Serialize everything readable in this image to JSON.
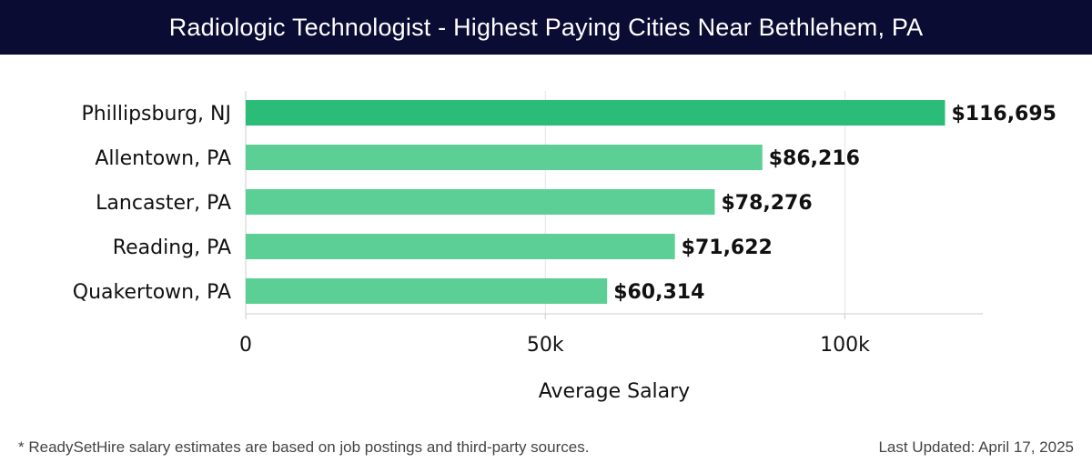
{
  "header": {
    "title": "Radiologic Technologist - Highest Paying Cities Near Bethlehem, PA"
  },
  "chart_data": {
    "type": "bar",
    "orientation": "horizontal",
    "title": "Radiologic Technologist - Highest Paying Cities Near Bethlehem, PA",
    "xlabel": "Average Salary",
    "ylabel": "",
    "categories": [
      "Phillipsburg, NJ",
      "Allentown, PA",
      "Lancaster, PA",
      "Reading, PA",
      "Quakertown, PA"
    ],
    "values": [
      116695,
      86216,
      78276,
      71622,
      60314
    ],
    "value_labels": [
      "$116,695",
      "$86,216",
      "$78,276",
      "$71,622",
      "$60,314"
    ],
    "xticks": [
      0,
      50000,
      100000
    ],
    "xtick_labels": [
      "0",
      "50k",
      "100k"
    ],
    "xlim": [
      0,
      123000
    ],
    "grid": "vertical",
    "colors": {
      "highlight": "#2bbd78",
      "bar": "#5ccf96",
      "grid": "#e3e3e3",
      "axis": "#cccccc"
    }
  },
  "footer": {
    "note": "* ReadySetHire salary estimates are based on job postings and third-party sources.",
    "updated": "Last Updated: April 17, 2025"
  }
}
